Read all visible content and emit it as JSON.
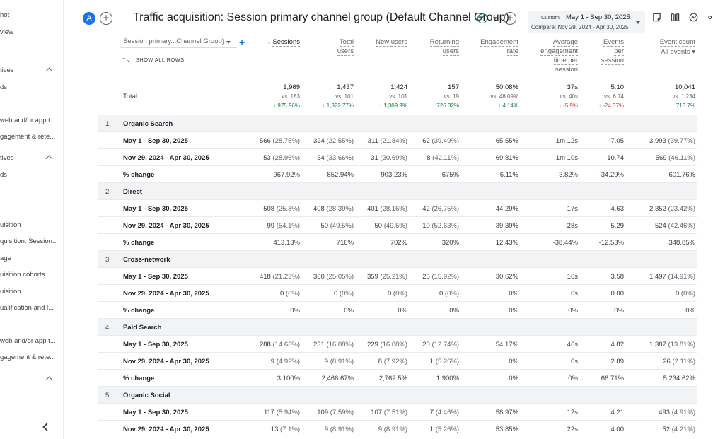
{
  "sidebar": {
    "items": [
      "hot",
      "view",
      "",
      "tives",
      "ds",
      "web and/or app t...",
      "gagement & rete...",
      "tives",
      "ds",
      "",
      "uisition",
      "quisition: Session...",
      "age",
      "uisition cohorts",
      "uisition",
      "ualification and l...",
      "web and/or app t...",
      "gagement & rete..."
    ]
  },
  "header": {
    "avatar": "A",
    "title": "Traffic acquisition: Session primary channel group (Default Channel Group)",
    "date_custom": "Custom",
    "date_range": "May 1 - Sep 30, 2025",
    "date_compare": "Compare: Nov 29, 2024 - Apr 30, 2025"
  },
  "table": {
    "dimension_select": "Session primary...Channel Group)",
    "show_all_rows": "SHOW ALL ROWS",
    "total_label": "Total",
    "columns": [
      {
        "label": "Sessions",
        "lines": [
          "Sessions"
        ]
      },
      {
        "label": "Total users",
        "lines": [
          "Total",
          "users"
        ]
      },
      {
        "label": "New users",
        "lines": [
          "New users"
        ]
      },
      {
        "label": "Returning users",
        "lines": [
          "Returning",
          "users"
        ]
      },
      {
        "label": "Engagement rate",
        "lines": [
          "Engagement",
          "rate"
        ]
      },
      {
        "label": "Average engagement time per session",
        "lines": [
          "Average",
          "engagement",
          "time per",
          "session"
        ]
      },
      {
        "label": "Events per session",
        "lines": [
          "Events",
          "per",
          "session"
        ]
      },
      {
        "label": "Event count",
        "lines": [
          "Event count"
        ],
        "sub": "All events"
      }
    ],
    "totals": [
      {
        "v": "1,969",
        "vs": "vs. 183",
        "pct": "975.96%",
        "dir": "up"
      },
      {
        "v": "1,437",
        "vs": "vs. 101",
        "pct": "1,322.77%",
        "dir": "up"
      },
      {
        "v": "1,424",
        "vs": "vs. 101",
        "pct": "1,309.9%",
        "dir": "up"
      },
      {
        "v": "157",
        "vs": "vs. 19",
        "pct": "726.32%",
        "dir": "up"
      },
      {
        "v": "50.08%",
        "vs": "vs. 48.09%",
        "pct": "4.14%",
        "dir": "up"
      },
      {
        "v": "37s",
        "vs": "vs. 40s",
        "pct": "-5.9%",
        "dir": "down"
      },
      {
        "v": "5.10",
        "vs": "vs. 6.74",
        "pct": "-24.37%",
        "dir": "down"
      },
      {
        "v": "10,041",
        "vs": "vs. 1,234",
        "pct": "713.7%",
        "dir": "up"
      }
    ],
    "rows": [
      {
        "type": "group",
        "idx": "1",
        "label": "Organic Search"
      },
      {
        "type": "data",
        "label": "May 1 - Sep 30, 2025",
        "cells": [
          [
            "566",
            "(28.75%)"
          ],
          [
            "324",
            "(22.55%)"
          ],
          [
            "311",
            "(21.84%)"
          ],
          [
            "62",
            "(39.49%)"
          ],
          [
            "65.55%",
            ""
          ],
          [
            "1m 12s",
            ""
          ],
          [
            "7.05",
            ""
          ],
          [
            "3,993",
            "(39.77%)"
          ]
        ]
      },
      {
        "type": "data",
        "label": "Nov 29, 2024 - Apr 30, 2025",
        "cells": [
          [
            "53",
            "(28.96%)"
          ],
          [
            "34",
            "(33.66%)"
          ],
          [
            "31",
            "(30.69%)"
          ],
          [
            "8",
            "(42.11%)"
          ],
          [
            "69.81%",
            ""
          ],
          [
            "1m 10s",
            ""
          ],
          [
            "10.74",
            ""
          ],
          [
            "569",
            "(46.11%)"
          ]
        ]
      },
      {
        "type": "data",
        "label": "% change",
        "cells": [
          [
            "967.92%",
            ""
          ],
          [
            "852.94%",
            ""
          ],
          [
            "903.23%",
            ""
          ],
          [
            "675%",
            ""
          ],
          [
            "-6.11%",
            ""
          ],
          [
            "3.82%",
            ""
          ],
          [
            "-34.29%",
            ""
          ],
          [
            "601.76%",
            ""
          ]
        ]
      },
      {
        "type": "group",
        "idx": "2",
        "label": "Direct"
      },
      {
        "type": "data",
        "label": "May 1 - Sep 30, 2025",
        "cells": [
          [
            "508",
            "(25.8%)"
          ],
          [
            "408",
            "(28.39%)"
          ],
          [
            "401",
            "(28.16%)"
          ],
          [
            "42",
            "(26.75%)"
          ],
          [
            "44.29%",
            ""
          ],
          [
            "17s",
            ""
          ],
          [
            "4.63",
            ""
          ],
          [
            "2,352",
            "(23.42%)"
          ]
        ]
      },
      {
        "type": "data",
        "label": "Nov 29, 2024 - Apr 30, 2025",
        "cells": [
          [
            "99",
            "(54.1%)"
          ],
          [
            "50",
            "(49.5%)"
          ],
          [
            "50",
            "(49.5%)"
          ],
          [
            "10",
            "(52.63%)"
          ],
          [
            "39.39%",
            ""
          ],
          [
            "28s",
            ""
          ],
          [
            "5.29",
            ""
          ],
          [
            "524",
            "(42.46%)"
          ]
        ]
      },
      {
        "type": "data",
        "label": "% change",
        "cells": [
          [
            "413.13%",
            ""
          ],
          [
            "716%",
            ""
          ],
          [
            "702%",
            ""
          ],
          [
            "320%",
            ""
          ],
          [
            "12.43%",
            ""
          ],
          [
            "-38.44%",
            ""
          ],
          [
            "-12.53%",
            ""
          ],
          [
            "348.85%",
            ""
          ]
        ]
      },
      {
        "type": "group",
        "idx": "3",
        "label": "Cross-network"
      },
      {
        "type": "data",
        "label": "May 1 - Sep 30, 2025",
        "cells": [
          [
            "418",
            "(21.23%)"
          ],
          [
            "360",
            "(25.05%)"
          ],
          [
            "359",
            "(25.21%)"
          ],
          [
            "25",
            "(15.92%)"
          ],
          [
            "30.62%",
            ""
          ],
          [
            "16s",
            ""
          ],
          [
            "3.58",
            ""
          ],
          [
            "1,497",
            "(14.91%)"
          ]
        ]
      },
      {
        "type": "data",
        "label": "Nov 29, 2024 - Apr 30, 2025",
        "cells": [
          [
            "0",
            "(0%)"
          ],
          [
            "0",
            "(0%)"
          ],
          [
            "0",
            "(0%)"
          ],
          [
            "0",
            "(0%)"
          ],
          [
            "0%",
            ""
          ],
          [
            "0s",
            ""
          ],
          [
            "0.00",
            ""
          ],
          [
            "0",
            "(0%)"
          ]
        ]
      },
      {
        "type": "data",
        "label": "% change",
        "cells": [
          [
            "0%",
            ""
          ],
          [
            "0%",
            ""
          ],
          [
            "0%",
            ""
          ],
          [
            "0%",
            ""
          ],
          [
            "0%",
            ""
          ],
          [
            "0%",
            ""
          ],
          [
            "0%",
            ""
          ],
          [
            "0%",
            ""
          ]
        ]
      },
      {
        "type": "group",
        "idx": "4",
        "label": "Paid Search"
      },
      {
        "type": "data",
        "label": "May 1 - Sep 30, 2025",
        "cells": [
          [
            "288",
            "(14.63%)"
          ],
          [
            "231",
            "(16.08%)"
          ],
          [
            "229",
            "(16.08%)"
          ],
          [
            "20",
            "(12.74%)"
          ],
          [
            "54.17%",
            ""
          ],
          [
            "46s",
            ""
          ],
          [
            "4.82",
            ""
          ],
          [
            "1,387",
            "(13.81%)"
          ]
        ]
      },
      {
        "type": "data",
        "label": "Nov 29, 2024 - Apr 30, 2025",
        "cells": [
          [
            "9",
            "(4.92%)"
          ],
          [
            "9",
            "(8.91%)"
          ],
          [
            "8",
            "(7.92%)"
          ],
          [
            "1",
            "(5.26%)"
          ],
          [
            "0%",
            ""
          ],
          [
            "0s",
            ""
          ],
          [
            "2.89",
            ""
          ],
          [
            "26",
            "(2.11%)"
          ]
        ]
      },
      {
        "type": "data",
        "label": "% change",
        "cells": [
          [
            "3,100%",
            ""
          ],
          [
            "2,466.67%",
            ""
          ],
          [
            "2,762.5%",
            ""
          ],
          [
            "1,900%",
            ""
          ],
          [
            "0%",
            ""
          ],
          [
            "0%",
            ""
          ],
          [
            "66.71%",
            ""
          ],
          [
            "5,234.62%",
            ""
          ]
        ]
      },
      {
        "type": "group",
        "idx": "5",
        "label": "Organic Social"
      },
      {
        "type": "data",
        "label": "May 1 - Sep 30, 2025",
        "cells": [
          [
            "117",
            "(5.94%)"
          ],
          [
            "109",
            "(7.59%)"
          ],
          [
            "107",
            "(7.51%)"
          ],
          [
            "7",
            "(4.46%)"
          ],
          [
            "58.97%",
            ""
          ],
          [
            "12s",
            ""
          ],
          [
            "4.21",
            ""
          ],
          [
            "493",
            "(4.91%)"
          ]
        ]
      },
      {
        "type": "data",
        "label": "Nov 29, 2024 - Apr 30, 2025",
        "cells": [
          [
            "13",
            "(7.1%)"
          ],
          [
            "9",
            "(8.91%)"
          ],
          [
            "9",
            "(8.91%)"
          ],
          [
            "1",
            "(5.26%)"
          ],
          [
            "53.85%",
            ""
          ],
          [
            "22s",
            ""
          ],
          [
            "4.00",
            ""
          ],
          [
            "52",
            "(4.21%)"
          ]
        ]
      }
    ]
  }
}
